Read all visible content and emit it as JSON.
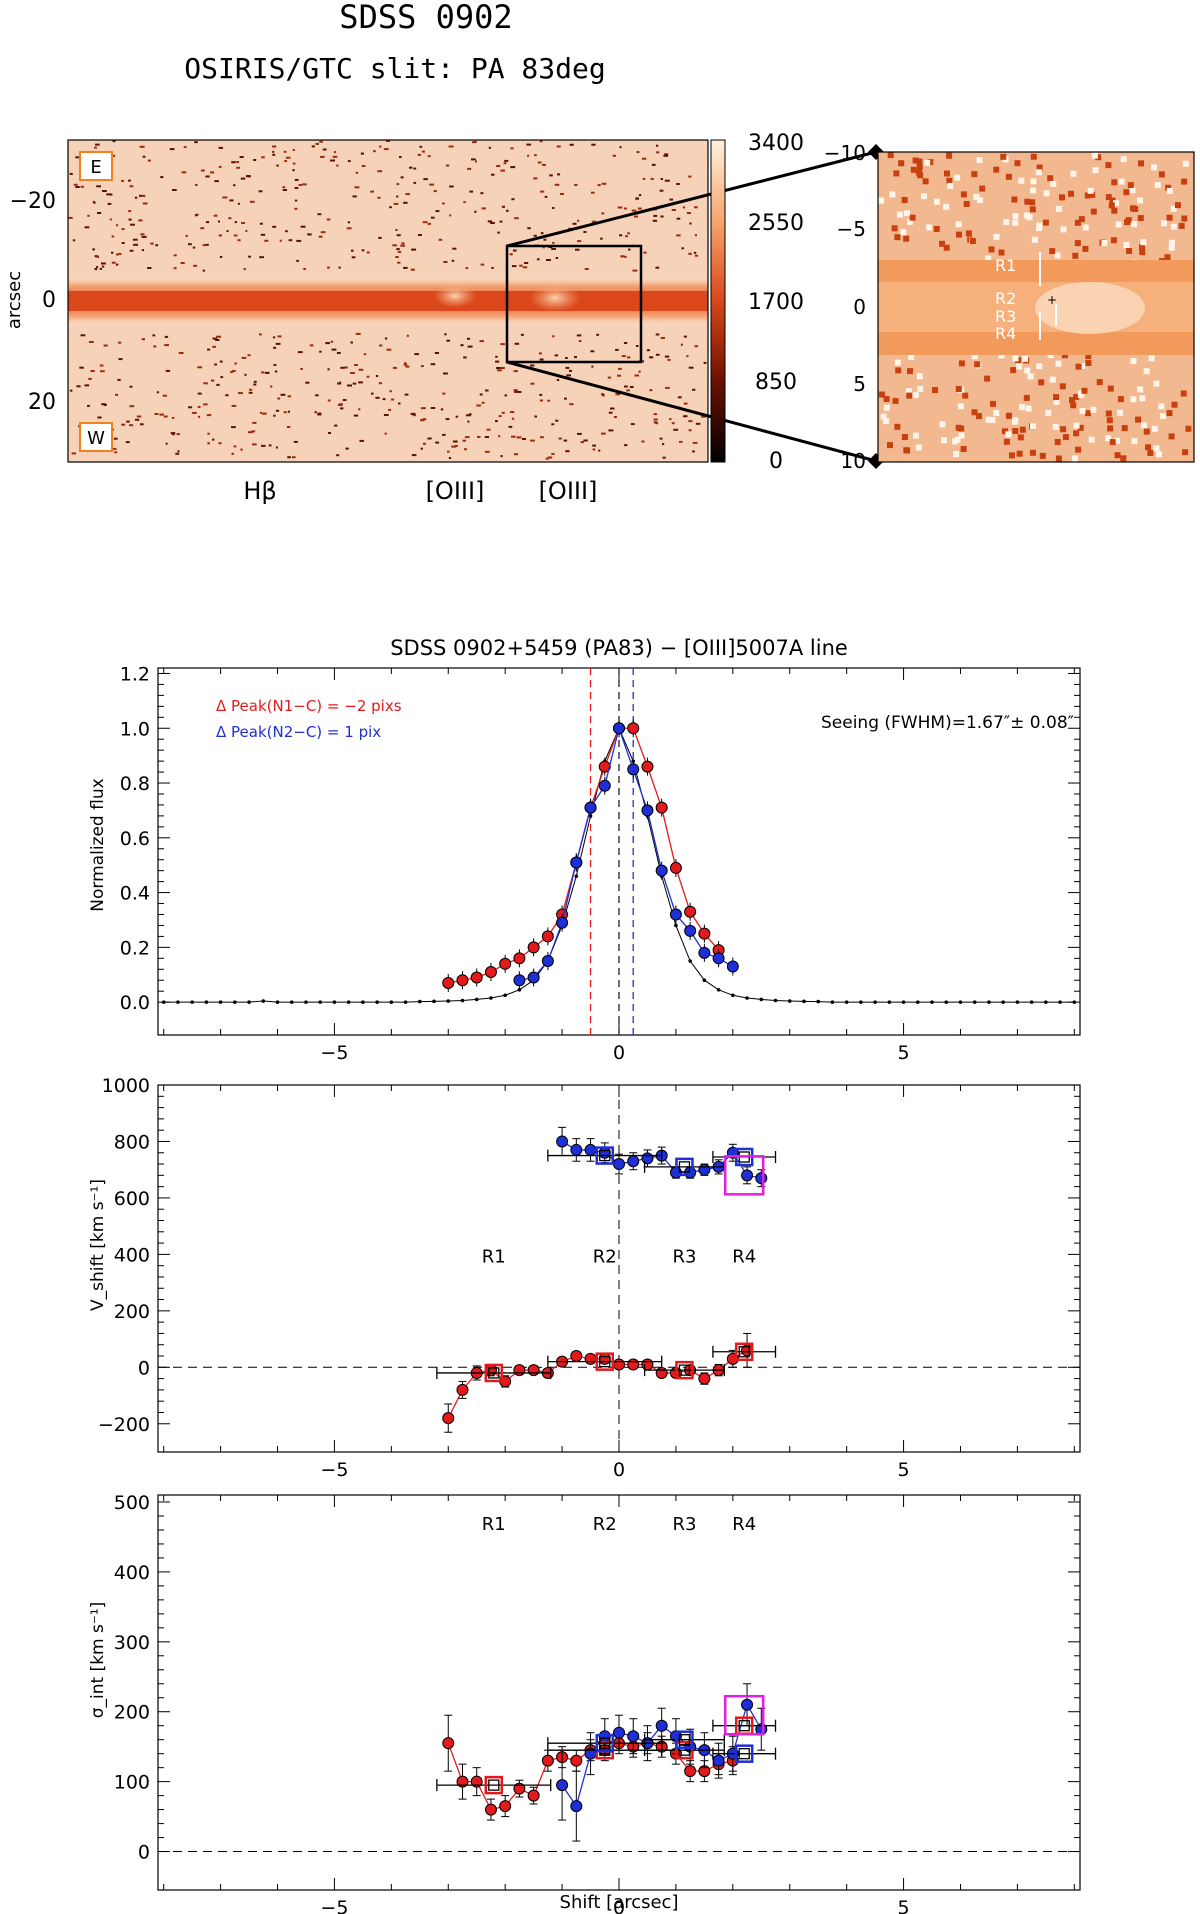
{
  "header": {
    "title": "SDSS 0902",
    "subtitle": "OSIRIS/GTC slit: PA 83deg"
  },
  "colors": {
    "red": "#e31a1c",
    "blue": "#1f2fd6",
    "magenta": "#e020e0",
    "image_dark": "#3a0a00",
    "image_mid": "#d9471a",
    "image_light": "#fff1e0"
  },
  "spectrum_image": {
    "ylabel": "arcsec",
    "y_ticks": [
      "−20",
      "0",
      "20"
    ],
    "colorbar_ticks": [
      "3400",
      "2550",
      "1700",
      "850",
      "0"
    ],
    "colorbar_range": [
      0,
      3400
    ],
    "labels": {
      "east": "E",
      "west": "W"
    },
    "line_labels": [
      "Hβ",
      "[OIII]",
      "[OIII]"
    ]
  },
  "zoom_image": {
    "y_ticks": [
      "−10",
      "−5",
      "0",
      "5",
      "10"
    ],
    "region_labels": [
      "R1",
      "R2",
      "R3",
      "R4"
    ]
  },
  "chart_data": [
    {
      "type": "line",
      "title": "SDSS 0902+5459 (PA83) − [OIII]5007A line",
      "ylabel": "Normalized flux",
      "xlim": [
        -8.1,
        8.1
      ],
      "ylim": [
        -0.12,
        1.22
      ],
      "y_ticks": [
        0.0,
        0.2,
        0.4,
        0.6,
        0.8,
        1.0,
        1.2
      ],
      "y_tick_labels": [
        "0.0",
        "0.2",
        "0.4",
        "0.6",
        "0.8",
        "1.0",
        "1.2"
      ],
      "x_ticks": [
        -5,
        0,
        5
      ],
      "x_tick_labels": [
        "−5",
        "0",
        "5"
      ],
      "annotations": {
        "red_peak": "Δ Peak(N1−C) = −2 pixs",
        "blue_peak": "Δ Peak(N2−C) = 1 pix",
        "seeing": "Seeing (FWHM)=1.67″± 0.08″"
      },
      "vlines": [
        {
          "x": -0.5,
          "color": "#e31a1c"
        },
        {
          "x": 0.0,
          "color": "#222222"
        },
        {
          "x": 0.25,
          "color": "#1f2fd6"
        }
      ],
      "black_profile": {
        "x": [
          -8.0,
          -7.75,
          -7.5,
          -7.25,
          -7.0,
          -6.75,
          -6.5,
          -6.25,
          -6.0,
          -5.75,
          -5.5,
          -5.25,
          -5.0,
          -4.75,
          -4.5,
          -4.25,
          -4.0,
          -3.75,
          -3.5,
          -3.25,
          -3.0,
          -2.75,
          -2.5,
          -2.25,
          -2.0,
          -1.75,
          -1.5,
          -1.25,
          -1.0,
          -0.75,
          -0.5,
          -0.25,
          0.0,
          0.25,
          0.5,
          0.75,
          1.0,
          1.25,
          1.5,
          1.75,
          2.0,
          2.25,
          2.5,
          2.75,
          3.0,
          3.25,
          3.5,
          3.75,
          4.0,
          4.25,
          4.5,
          4.75,
          5.0,
          5.25,
          5.5,
          5.75,
          6.0,
          6.25,
          6.5,
          6.75,
          7.0,
          7.25,
          7.5,
          7.75,
          8.0
        ],
        "y": [
          0.0,
          0.0,
          0.0,
          0.0,
          0.0,
          0.0,
          0.0,
          0.004,
          0.0,
          0.0,
          0.0,
          0.0,
          0.0,
          0.0,
          0.0,
          0.0,
          0.0,
          0.0,
          0.002,
          0.003,
          0.004,
          0.006,
          0.01,
          0.015,
          0.025,
          0.045,
          0.08,
          0.15,
          0.28,
          0.46,
          0.68,
          0.88,
          1.0,
          0.88,
          0.68,
          0.46,
          0.28,
          0.15,
          0.08,
          0.045,
          0.025,
          0.015,
          0.01,
          0.006,
          0.004,
          0.003,
          0.002,
          0.0,
          0.0,
          0.0,
          0.0,
          0.0,
          0.0,
          0.0,
          0.0,
          0.0,
          0.0,
          0.0,
          0.0,
          0.0,
          0.0,
          0.0,
          0.0,
          0.0,
          0.0
        ]
      },
      "series": [
        {
          "name": "N1 (red)",
          "x": [
            -3.0,
            -2.75,
            -2.5,
            -2.25,
            -2.0,
            -1.75,
            -1.5,
            -1.25,
            -1.0,
            -0.75,
            -0.5,
            -0.25,
            0.0,
            0.25,
            0.5,
            0.75,
            1.0,
            1.25,
            1.5,
            1.75
          ],
          "y": [
            0.07,
            0.08,
            0.09,
            0.11,
            0.14,
            0.16,
            0.2,
            0.24,
            0.32,
            0.51,
            0.71,
            0.86,
            1.0,
            1.0,
            0.86,
            0.71,
            0.49,
            0.33,
            0.25,
            0.19
          ]
        },
        {
          "name": "N2 (blue)",
          "x": [
            -1.75,
            -1.5,
            -1.25,
            -1.0,
            -0.75,
            -0.5,
            -0.25,
            0.0,
            0.25,
            0.5,
            0.75,
            1.0,
            1.25,
            1.5,
            1.75,
            2.0
          ],
          "y": [
            0.08,
            0.09,
            0.15,
            0.29,
            0.51,
            0.71,
            0.79,
            1.0,
            0.85,
            0.7,
            0.48,
            0.32,
            0.26,
            0.18,
            0.16,
            0.13
          ]
        }
      ]
    },
    {
      "type": "scatter",
      "ylabel": "V_shift [km s⁻¹]",
      "xlim": [
        -8.1,
        8.1
      ],
      "ylim": [
        -300,
        1000
      ],
      "y_ticks": [
        -200,
        0,
        200,
        400,
        600,
        800,
        1000
      ],
      "y_tick_labels": [
        "−200",
        "0",
        "200",
        "400",
        "600",
        "800",
        "1000"
      ],
      "x_ticks": [
        -5,
        0,
        5
      ],
      "x_tick_labels": [
        "−5",
        "0",
        "5"
      ],
      "region_labels": [
        {
          "x": -2.2,
          "text": "R1"
        },
        {
          "x": -0.25,
          "text": "R2"
        },
        {
          "x": 1.15,
          "text": "R3"
        },
        {
          "x": 2.2,
          "text": "R4"
        }
      ],
      "series": [
        {
          "name": "blue component",
          "x": [
            -1.0,
            -0.75,
            -0.5,
            -0.25,
            0.0,
            0.25,
            0.5,
            0.75,
            1.0,
            1.25,
            1.5,
            1.75,
            2.0,
            2.25,
            2.5
          ],
          "y": [
            800,
            770,
            770,
            760,
            720,
            730,
            740,
            750,
            690,
            690,
            700,
            710,
            760,
            680,
            670
          ],
          "err": [
            50,
            40,
            40,
            35,
            35,
            30,
            30,
            30,
            20,
            20,
            20,
            25,
            30,
            30,
            30
          ]
        },
        {
          "name": "red component",
          "x": [
            -3.0,
            -2.75,
            -2.5,
            -2.25,
            -2.0,
            -1.75,
            -1.5,
            -1.25,
            -1.0,
            -0.75,
            -0.5,
            -0.25,
            0.0,
            0.25,
            0.5,
            0.75,
            1.0,
            1.25,
            1.5,
            1.75,
            2.0,
            2.25
          ],
          "y": [
            -180,
            -80,
            -20,
            -10,
            -50,
            -10,
            -10,
            -20,
            20,
            40,
            30,
            30,
            10,
            10,
            10,
            -20,
            -20,
            -10,
            -40,
            -10,
            30,
            60
          ],
          "err": [
            50,
            30,
            25,
            20,
            20,
            15,
            15,
            15,
            15,
            15,
            15,
            15,
            15,
            15,
            15,
            15,
            15,
            15,
            20,
            20,
            30,
            60
          ]
        }
      ],
      "region_boxes": [
        {
          "x": -2.2,
          "y": -20,
          "color": "#e31a1c",
          "xerr": 1.0
        },
        {
          "x": -0.25,
          "y": 20,
          "color": "#e31a1c",
          "xerr": 1.0
        },
        {
          "x": 1.15,
          "y": -10,
          "color": "#e31a1c",
          "xerr": 0.7
        },
        {
          "x": 2.2,
          "y": 55,
          "color": "#e31a1c",
          "xerr": 0.55
        },
        {
          "x": -0.25,
          "y": 750,
          "color": "#1f2fd6",
          "xerr": 1.0
        },
        {
          "x": 1.15,
          "y": 710,
          "color": "#1f2fd6",
          "xerr": 0.7
        },
        {
          "x": 2.2,
          "y": 745,
          "color": "#1f2fd6",
          "xerr": 0.55
        },
        {
          "x": 2.2,
          "y": 680,
          "color": "#e020e0",
          "xerr": 0,
          "big": true
        }
      ]
    },
    {
      "type": "scatter",
      "ylabel": "σ_int [km s⁻¹]",
      "xlabel": "Shift [arcsec]",
      "xlim": [
        -8.1,
        8.1
      ],
      "ylim": [
        -55,
        510
      ],
      "y_ticks": [
        0,
        100,
        200,
        300,
        400,
        500
      ],
      "y_tick_labels": [
        "0",
        "100",
        "200",
        "300",
        "400",
        "500"
      ],
      "x_ticks": [
        -5,
        0,
        5
      ],
      "x_tick_labels": [
        "−5",
        "0",
        "5"
      ],
      "region_labels": [
        {
          "x": -2.2,
          "text": "R1"
        },
        {
          "x": -0.25,
          "text": "R2"
        },
        {
          "x": 1.15,
          "text": "R3"
        },
        {
          "x": 2.2,
          "text": "R4"
        }
      ],
      "series": [
        {
          "name": "red component",
          "x": [
            -3.0,
            -2.75,
            -2.5,
            -2.25,
            -2.0,
            -1.75,
            -1.5,
            -1.25,
            -1.0,
            -0.75,
            -0.5,
            -0.25,
            0.0,
            0.25,
            0.5,
            0.75,
            1.0,
            1.25,
            1.5,
            1.75,
            2.0
          ],
          "y": [
            155,
            100,
            100,
            60,
            65,
            90,
            80,
            130,
            135,
            130,
            145,
            145,
            155,
            150,
            155,
            150,
            140,
            115,
            115,
            125,
            130
          ],
          "err": [
            40,
            25,
            20,
            15,
            15,
            12,
            12,
            15,
            15,
            15,
            15,
            15,
            15,
            15,
            15,
            15,
            15,
            15,
            15,
            15,
            20
          ]
        },
        {
          "name": "blue component",
          "x": [
            -1.0,
            -0.75,
            -0.5,
            -0.25,
            0.0,
            0.25,
            0.5,
            0.75,
            1.0,
            1.25,
            1.5,
            1.75,
            2.0,
            2.25,
            2.5
          ],
          "y": [
            95,
            65,
            140,
            165,
            170,
            165,
            155,
            180,
            165,
            150,
            145,
            130,
            140,
            210,
            175
          ],
          "err": [
            50,
            50,
            30,
            25,
            25,
            25,
            25,
            25,
            25,
            25,
            25,
            25,
            25,
            30,
            30
          ]
        }
      ],
      "region_boxes": [
        {
          "x": -2.2,
          "y": 95,
          "color": "#e31a1c",
          "xerr": 1.0
        },
        {
          "x": -0.25,
          "y": 145,
          "color": "#e31a1c",
          "xerr": 1.0
        },
        {
          "x": 1.15,
          "y": 145,
          "color": "#e31a1c",
          "xerr": 0.7
        },
        {
          "x": 2.2,
          "y": 180,
          "color": "#e31a1c",
          "xerr": 0.55
        },
        {
          "x": -0.25,
          "y": 155,
          "color": "#1f2fd6",
          "xerr": 1.0
        },
        {
          "x": 1.15,
          "y": 160,
          "color": "#1f2fd6",
          "xerr": 0.7
        },
        {
          "x": 2.2,
          "y": 140,
          "color": "#1f2fd6",
          "xerr": 0.55
        },
        {
          "x": 2.2,
          "y": 195,
          "color": "#e020e0",
          "xerr": 0,
          "big": true
        }
      ]
    }
  ]
}
